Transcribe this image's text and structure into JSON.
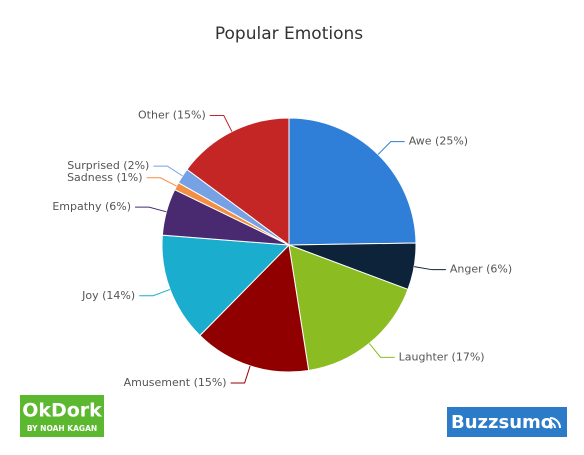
{
  "chart_data": {
    "type": "pie",
    "title": "Popular Emotions",
    "values": [
      25,
      6,
      17,
      15,
      14,
      6,
      1,
      2,
      15
    ],
    "value_labels": [
      "Awe (25%)",
      "Anger (6%)",
      "Laughter (17%)",
      "Amusement (15%)",
      "Joy (14%)",
      "Empathy (6%)",
      "Sadness (1%)",
      "Surprised (2%)",
      "Other (15%)"
    ],
    "colors": [
      "#2f7ed8",
      "#0d233a",
      "#8bbc21",
      "#910000",
      "#1aadce",
      "#492970",
      "#f28f43",
      "#77a1e5",
      "#c42525"
    ]
  },
  "logos": {
    "okdork": "OkDork",
    "okdork_sub": "BY NOAH KAGAN",
    "buzzsumo": "Buzzsumo"
  }
}
